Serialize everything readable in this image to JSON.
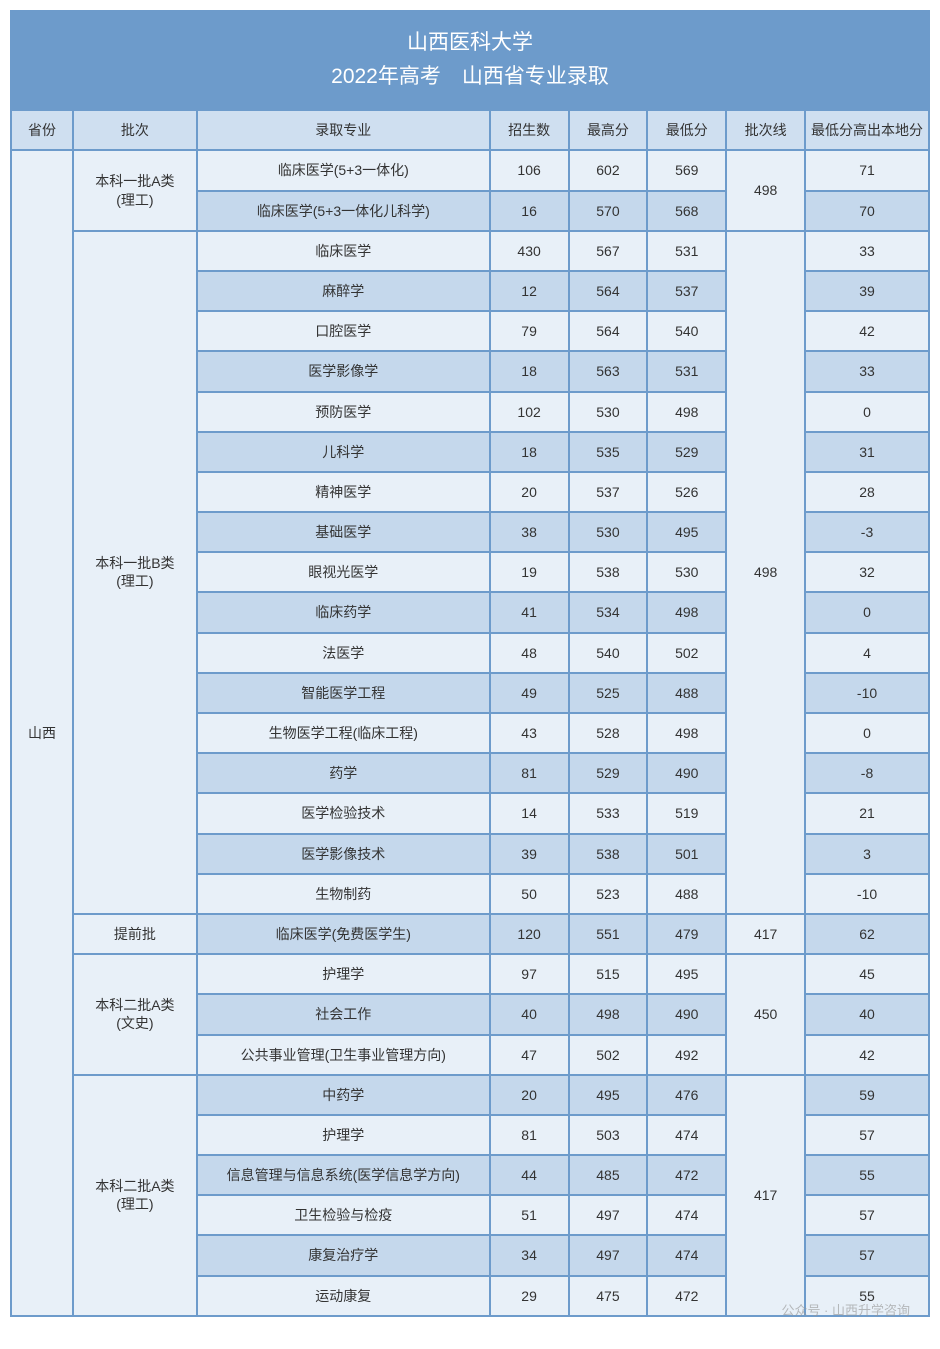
{
  "title_line1": "山西医科大学",
  "title_line2": "2022年高考　山西省专业录取",
  "headers": {
    "province": "省份",
    "batch": "批次",
    "major": "录取专业",
    "enroll": "招生数",
    "max": "最高分",
    "min": "最低分",
    "line": "批次线",
    "diff": "最低分高出本地分"
  },
  "province": "山西",
  "batches": [
    {
      "name": "本科一批A类\n(理工)",
      "line": "498",
      "rows": [
        {
          "major": "临床医学(5+3一体化)",
          "enroll": "106",
          "max": "602",
          "min": "569",
          "diff": "71"
        },
        {
          "major": "临床医学(5+3一体化儿科学)",
          "enroll": "16",
          "max": "570",
          "min": "568",
          "diff": "70"
        }
      ]
    },
    {
      "name": "本科一批B类\n(理工)",
      "line": "498",
      "rows": [
        {
          "major": "临床医学",
          "enroll": "430",
          "max": "567",
          "min": "531",
          "diff": "33"
        },
        {
          "major": "麻醉学",
          "enroll": "12",
          "max": "564",
          "min": "537",
          "diff": "39"
        },
        {
          "major": "口腔医学",
          "enroll": "79",
          "max": "564",
          "min": "540",
          "diff": "42"
        },
        {
          "major": "医学影像学",
          "enroll": "18",
          "max": "563",
          "min": "531",
          "diff": "33"
        },
        {
          "major": "预防医学",
          "enroll": "102",
          "max": "530",
          "min": "498",
          "diff": "0"
        },
        {
          "major": "儿科学",
          "enroll": "18",
          "max": "535",
          "min": "529",
          "diff": "31"
        },
        {
          "major": "精神医学",
          "enroll": "20",
          "max": "537",
          "min": "526",
          "diff": "28"
        },
        {
          "major": "基础医学",
          "enroll": "38",
          "max": "530",
          "min": "495",
          "diff": "-3"
        },
        {
          "major": "眼视光医学",
          "enroll": "19",
          "max": "538",
          "min": "530",
          "diff": "32"
        },
        {
          "major": "临床药学",
          "enroll": "41",
          "max": "534",
          "min": "498",
          "diff": "0"
        },
        {
          "major": "法医学",
          "enroll": "48",
          "max": "540",
          "min": "502",
          "diff": "4"
        },
        {
          "major": "智能医学工程",
          "enroll": "49",
          "max": "525",
          "min": "488",
          "diff": "-10"
        },
        {
          "major": "生物医学工程(临床工程)",
          "enroll": "43",
          "max": "528",
          "min": "498",
          "diff": "0"
        },
        {
          "major": "药学",
          "enroll": "81",
          "max": "529",
          "min": "490",
          "diff": "-8"
        },
        {
          "major": "医学检验技术",
          "enroll": "14",
          "max": "533",
          "min": "519",
          "diff": "21"
        },
        {
          "major": "医学影像技术",
          "enroll": "39",
          "max": "538",
          "min": "501",
          "diff": "3"
        },
        {
          "major": "生物制药",
          "enroll": "50",
          "max": "523",
          "min": "488",
          "diff": "-10"
        }
      ]
    },
    {
      "name": "提前批",
      "line": "417",
      "rows": [
        {
          "major": "临床医学(免费医学生)",
          "enroll": "120",
          "max": "551",
          "min": "479",
          "diff": "62"
        }
      ]
    },
    {
      "name": "本科二批A类\n(文史)",
      "line": "450",
      "rows": [
        {
          "major": "护理学",
          "enroll": "97",
          "max": "515",
          "min": "495",
          "diff": "45"
        },
        {
          "major": "社会工作",
          "enroll": "40",
          "max": "498",
          "min": "490",
          "diff": "40"
        },
        {
          "major": "公共事业管理(卫生事业管理方向)",
          "enroll": "47",
          "max": "502",
          "min": "492",
          "diff": "42"
        }
      ]
    },
    {
      "name": "本科二批A类\n(理工)",
      "line": "417",
      "rows": [
        {
          "major": "中药学",
          "enroll": "20",
          "max": "495",
          "min": "476",
          "diff": "59"
        },
        {
          "major": "护理学",
          "enroll": "81",
          "max": "503",
          "min": "474",
          "diff": "57"
        },
        {
          "major": "信息管理与信息系统(医学信息学方向)",
          "enroll": "44",
          "max": "485",
          "min": "472",
          "diff": "55"
        },
        {
          "major": "卫生检验与检疫",
          "enroll": "51",
          "max": "497",
          "min": "474",
          "diff": "57"
        },
        {
          "major": "康复治疗学",
          "enroll": "34",
          "max": "497",
          "min": "474",
          "diff": "57"
        },
        {
          "major": "运动康复",
          "enroll": "29",
          "max": "475",
          "min": "472",
          "diff": "55"
        }
      ]
    }
  ],
  "watermark": "公众号 · 山西升学咨询",
  "colors": {
    "border": "#6d9bcb",
    "title_bg": "#6d9bcb",
    "header_bg": "#cfdff0",
    "row_light": "#e8f0f8",
    "row_dark": "#c5d8ec"
  }
}
